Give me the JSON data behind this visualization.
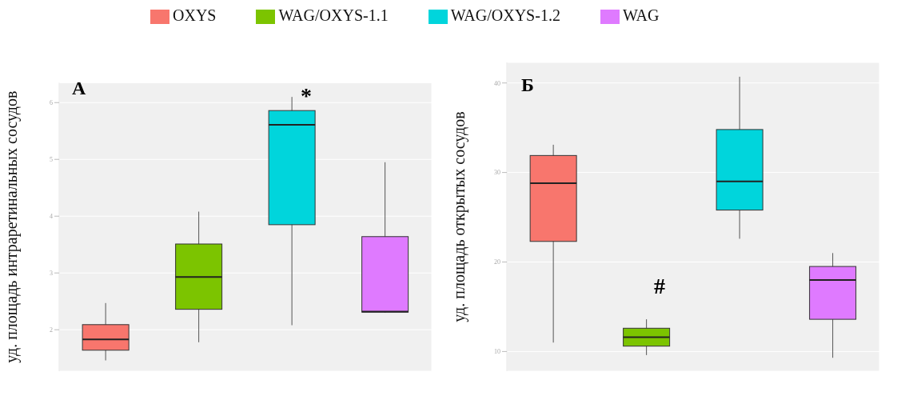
{
  "chart_data": [
    {
      "type": "box",
      "ylabel": "уд. площадь интраретинальных сосудов",
      "categories": [
        null,
        null,
        null,
        null
      ],
      "legend": "top",
      "grid": true,
      "tick_labels": "y",
      "ylim": [
        1.27,
        6.35
      ],
      "yticks": [
        2,
        3,
        4,
        5,
        6
      ],
      "series": [
        {
          "name": "OXYS",
          "color": "#f8766d",
          "boxes": [
            {
              "low": 1.46,
              "q1": 1.64,
              "median": 1.83,
              "q3": 2.09,
              "high": 2.47
            },
            null,
            null,
            null
          ]
        },
        {
          "name": "WAG/OXYS-1.1",
          "color": "#7cc400",
          "boxes": [
            null,
            {
              "low": 1.78,
              "q1": 2.36,
              "median": 2.93,
              "q3": 3.51,
              "high": 4.08
            },
            null,
            null
          ]
        },
        {
          "name": "WAG/OXYS-1.2",
          "color": "#00d5dc",
          "boxes": [
            null,
            null,
            {
              "low": 2.08,
              "q1": 3.85,
              "median": 5.61,
              "q3": 5.86,
              "high": 6.1
            },
            null
          ]
        },
        {
          "name": "WAG",
          "color": "#df7aff",
          "boxes": [
            null,
            null,
            null,
            {
              "low": 2.3,
              "q1": 2.31,
              "median": 2.32,
              "q3": 3.64,
              "high": 4.95
            }
          ]
        }
      ],
      "annotations": [
        "А",
        "*"
      ]
    },
    {
      "type": "box",
      "ylabel": "уд. площадь открытых сосудов",
      "categories": [
        null,
        null,
        null,
        null
      ],
      "grid": true,
      "tick_labels": "y",
      "ylim": [
        7.8,
        42.3
      ],
      "yticks": [
        10,
        20,
        30,
        40
      ],
      "series": [
        {
          "color": "#f8766d",
          "boxes": [
            {
              "low": 11.0,
              "q1": 22.3,
              "median": 28.8,
              "q3": 31.9,
              "high": 33.1
            },
            null,
            null,
            null
          ]
        },
        {
          "color": "#7cc400",
          "boxes": [
            null,
            {
              "low": 9.6,
              "q1": 10.6,
              "median": 11.6,
              "q3": 12.6,
              "high": 13.6
            },
            null,
            null
          ]
        },
        {
          "color": "#00d5dc",
          "boxes": [
            null,
            null,
            {
              "low": 22.6,
              "q1": 25.8,
              "median": 29.0,
              "q3": 34.8,
              "high": 40.7
            },
            null
          ]
        },
        {
          "color": "#df7aff",
          "boxes": [
            null,
            null,
            null,
            {
              "low": 9.3,
              "q1": 13.6,
              "median": 18.0,
              "q3": 19.5,
              "high": 21.0
            }
          ]
        }
      ],
      "annotations": [
        "Б",
        "#"
      ]
    }
  ]
}
